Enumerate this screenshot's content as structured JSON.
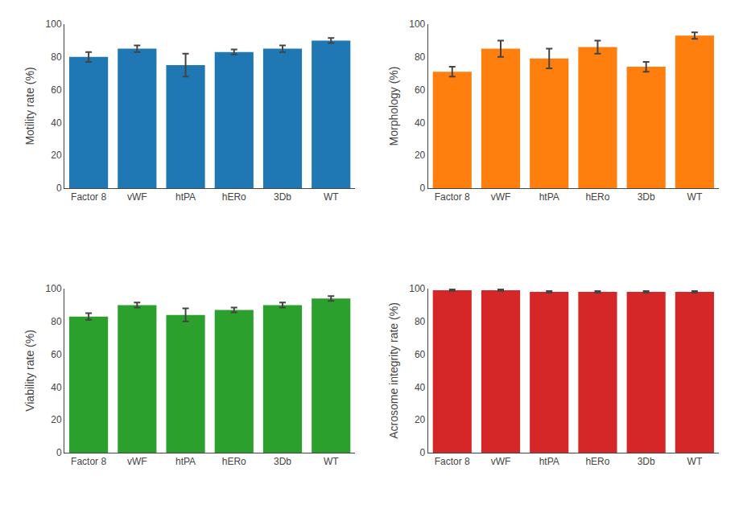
{
  "chart_data": [
    {
      "type": "bar",
      "ylabel": "Motility rate (%)",
      "categories": [
        "Factor 8",
        "vWF",
        "htPA",
        "hERo",
        "3Db",
        "WT"
      ],
      "values": [
        80,
        85,
        75,
        83,
        85,
        90
      ],
      "errors": [
        3,
        2,
        7,
        1.5,
        2,
        1.5
      ],
      "ylim": [
        0,
        100
      ],
      "yticks": [
        0,
        20,
        40,
        60,
        80,
        100
      ],
      "grid": false
    },
    {
      "type": "bar",
      "ylabel": "Morphology (%)",
      "categories": [
        "Factor 8",
        "vWF",
        "htPA",
        "hERo",
        "3Db",
        "WT"
      ],
      "values": [
        71,
        85,
        79,
        86,
        74,
        93
      ],
      "errors": [
        3,
        5,
        6,
        4,
        3,
        2
      ],
      "ylim": [
        0,
        100
      ],
      "yticks": [
        0,
        20,
        40,
        60,
        80,
        100
      ],
      "grid": false
    },
    {
      "type": "bar",
      "ylabel": "Viability rate (%)",
      "categories": [
        "Factor 8",
        "vWF",
        "htPA",
        "hERo",
        "3Db",
        "WT"
      ],
      "values": [
        83,
        90,
        84,
        87,
        90,
        94
      ],
      "errors": [
        2,
        1.5,
        4,
        1.5,
        1.5,
        1.5
      ],
      "ylim": [
        0,
        100
      ],
      "yticks": [
        0,
        20,
        40,
        60,
        80,
        100
      ],
      "grid": false
    },
    {
      "type": "bar",
      "ylabel": "Acrosome integrity rate (%)",
      "categories": [
        "Factor 8",
        "vWF",
        "htPA",
        "hERo",
        "3Db",
        "WT"
      ],
      "values": [
        99,
        99,
        98,
        98,
        98,
        98
      ],
      "errors": [
        0.5,
        0.5,
        0.5,
        0.5,
        0.5,
        0.5
      ],
      "ylim": [
        0,
        100
      ],
      "yticks": [
        0,
        20,
        40,
        60,
        80,
        100
      ],
      "grid": false
    }
  ]
}
